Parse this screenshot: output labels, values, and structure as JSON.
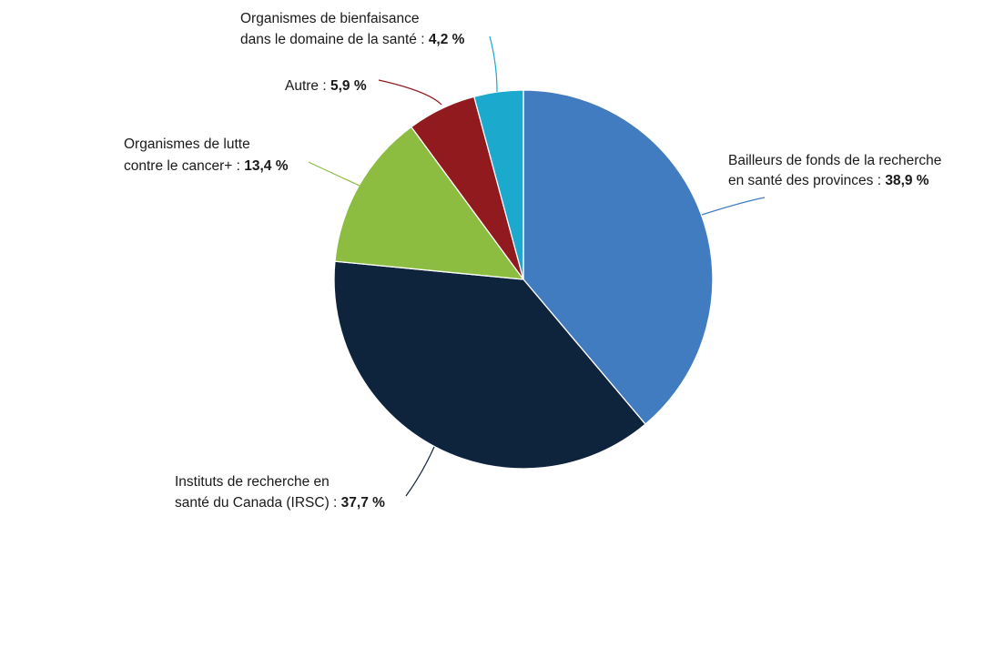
{
  "chart_data": {
    "type": "pie",
    "slices": [
      {
        "line1": "Bailleurs de fonds de la recherche",
        "line2": "en santé des provinces :",
        "value": 38.9,
        "value_label": "38,9 %",
        "color": "#417cc0"
      },
      {
        "line1": "Instituts de recherche en",
        "line2": "santé du Canada (IRSC) :",
        "value": 37.7,
        "value_label": "37,7 %",
        "color": "#0e233c"
      },
      {
        "line1": "Organismes de lutte",
        "line2": "contre le cancer+ :",
        "value": 13.4,
        "value_label": "13,4 %",
        "color": "#8cbd41"
      },
      {
        "line1": "",
        "line2": "Autre :",
        "value": 5.9,
        "value_label": "5,9 %",
        "color": "#911a1e"
      },
      {
        "line1": "Organismes de bienfaisance",
        "line2": "dans le domaine de la santé :",
        "value": 4.2,
        "value_label": "4,2 %",
        "color": "#1ba9cd"
      }
    ],
    "start_angle_deg": 0,
    "direction": "clockwise",
    "legend": "none"
  }
}
